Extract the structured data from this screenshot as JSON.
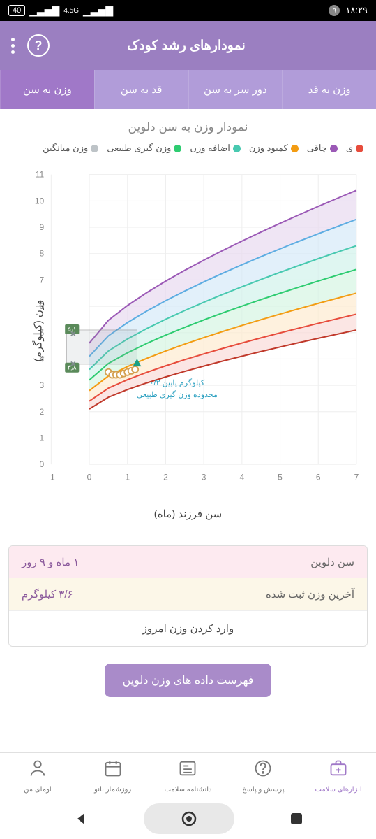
{
  "status": {
    "battery": "40",
    "network": "4.5G",
    "time": "۱۸:۲۹",
    "notif_count": "۹"
  },
  "header": {
    "title": "نمودارهای رشد کودک"
  },
  "tabs": [
    {
      "label": "وزن به سن",
      "active": true
    },
    {
      "label": "قد به سن",
      "active": false
    },
    {
      "label": "دور سر به سن",
      "active": false
    },
    {
      "label": "وزن به قد",
      "active": false
    }
  ],
  "chart": {
    "title": "نمودار وزن به سن دلوین",
    "y_label": "وزن (کیلوگرم)",
    "x_label": "سن فرزند (ماه)",
    "y_ticks": [
      0,
      1,
      2,
      3,
      4,
      5,
      6,
      7,
      8,
      9,
      10,
      11
    ],
    "x_ticks": [
      -1,
      0,
      1,
      2,
      3,
      4,
      5,
      6,
      7
    ],
    "ylim": [
      0,
      11
    ],
    "xlim": [
      -1,
      7
    ],
    "legend": [
      {
        "label": "ی",
        "color": "#e74c3c"
      },
      {
        "label": "چاقی",
        "color": "#9b59b6"
      },
      {
        "label": "کمبود وزن",
        "color": "#f39c12"
      },
      {
        "label": "اضافه وزن",
        "color": "#48c9b0"
      },
      {
        "label": "وزن گیری طبیعی",
        "color": "#2ecc71"
      },
      {
        "label": "وزن میانگین",
        "color": "#bdc3c7"
      }
    ],
    "curves": [
      {
        "color": "#9b59b6",
        "fill": "#e8daef",
        "y0": 4.6,
        "y7": 10.4
      },
      {
        "color": "#5dade2",
        "fill": "#d6eaf8",
        "y0": 4.1,
        "y7": 9.3
      },
      {
        "color": "#48c9b0",
        "fill": "#d1f2eb",
        "y0": 3.6,
        "y7": 8.3
      },
      {
        "color": "#2ecc71",
        "fill": "#d5f5e3",
        "y0": 3.2,
        "y7": 7.4
      },
      {
        "color": "#f39c12",
        "fill": "#fdebd0",
        "y0": 2.8,
        "y7": 6.5
      },
      {
        "color": "#e74c3c",
        "fill": "#fadbd8",
        "y0": 2.4,
        "y7": 5.7
      },
      {
        "color": "#c0392b",
        "fill": "none",
        "y0": 2.1,
        "y7": 5.1
      }
    ],
    "markers": {
      "box_top": "۵٫۱",
      "box_bottom": "۳٫۸",
      "annotation1": "۰/۲ کیلوگرم پایین",
      "annotation2": "محدوده وزن گیری طبیعی",
      "data_x": [
        0.5,
        0.6,
        0.7,
        0.8,
        0.9,
        1.0,
        1.1,
        1.2
      ],
      "data_y": [
        3.5,
        3.4,
        3.4,
        3.4,
        3.45,
        3.5,
        3.55,
        3.6
      ]
    },
    "colors": {
      "grid": "#eeeeee",
      "axis": "#cccccc",
      "text": "#888888",
      "box_marker": "#7f8c8d",
      "target_marker": "#16a085"
    }
  },
  "info": {
    "age_label": "سن دلوین",
    "age_value": "۱ ماه و ۹ روز",
    "weight_label": "آخرین وزن ثبت شده",
    "weight_value": "۳/۶ کیلوگرم",
    "enter_label": "وارد کردن وزن امروز"
  },
  "data_list_btn": "فهرست داده های وزن دلوین",
  "bottom_nav": [
    {
      "label": "اومای من",
      "icon": "user"
    },
    {
      "label": "روزشمار بانو",
      "icon": "calendar"
    },
    {
      "label": "دانشنامه سلامت",
      "icon": "news"
    },
    {
      "label": "پرسش و پاسخ",
      "icon": "question"
    },
    {
      "label": "ابزارهای سلامت",
      "icon": "toolkit",
      "active": true
    }
  ]
}
